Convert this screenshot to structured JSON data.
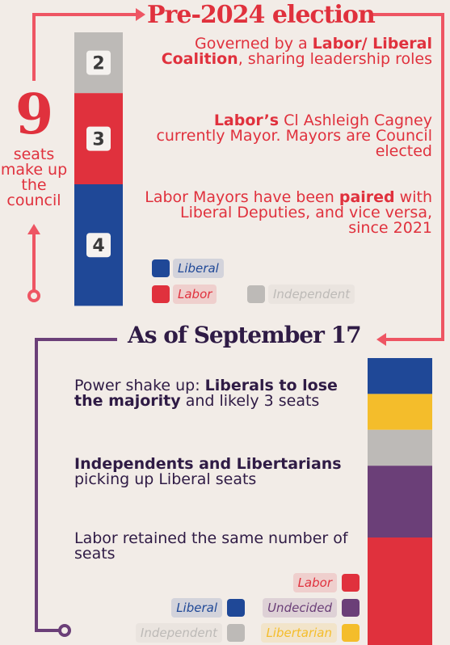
{
  "pre": {
    "title": "Pre-2024 election",
    "total": 9,
    "total_caption": "seats make up the council",
    "segments": [
      {
        "name": "Independent",
        "value": 2,
        "color": "#bdbab7"
      },
      {
        "name": "Labor",
        "value": 3,
        "color": "#e0313d"
      },
      {
        "name": "Liberal",
        "value": 4,
        "color": "#1f4897"
      }
    ],
    "notes": [
      [
        {
          "text": "Governed by a "
        },
        {
          "text": "Labor/ Liberal Coalition",
          "bold": true
        },
        {
          "text": ", sharing leadership roles"
        }
      ],
      [
        {
          "text": "Labor’s",
          "bold": true
        },
        {
          "text": " Cl Ashleigh Cagney currently Mayor. Mayors are Council elected"
        }
      ],
      [
        {
          "text": "Labor Mayors have been "
        },
        {
          "text": "paired",
          "bold": true
        },
        {
          "text": " with Liberal Deputies, and vice versa, since 2021"
        }
      ]
    ]
  },
  "post": {
    "title": "As of September 17",
    "segments": [
      {
        "name": "Liberal",
        "value": 1,
        "color": "#1f4897"
      },
      {
        "name": "Libertarian",
        "value": 1,
        "color": "#f4bd2b"
      },
      {
        "name": "Independent",
        "value": 1,
        "color": "#bdbab7"
      },
      {
        "name": "Undecided",
        "value": 2,
        "color": "#6b3f78"
      },
      {
        "name": "Labor",
        "value": 3,
        "color": "#e0313d"
      }
    ],
    "notes": [
      [
        {
          "text": "Power shake up: "
        },
        {
          "text": "Liberals to lose the majority",
          "bold": true
        },
        {
          "text": " and likely 3 seats"
        }
      ],
      [
        {
          "text": "Independents and Libertarians",
          "bold": true
        },
        {
          "text": " picking up Liberal seats"
        }
      ],
      [
        {
          "text": "Labor retained the same number of seats"
        }
      ]
    ]
  }
}
